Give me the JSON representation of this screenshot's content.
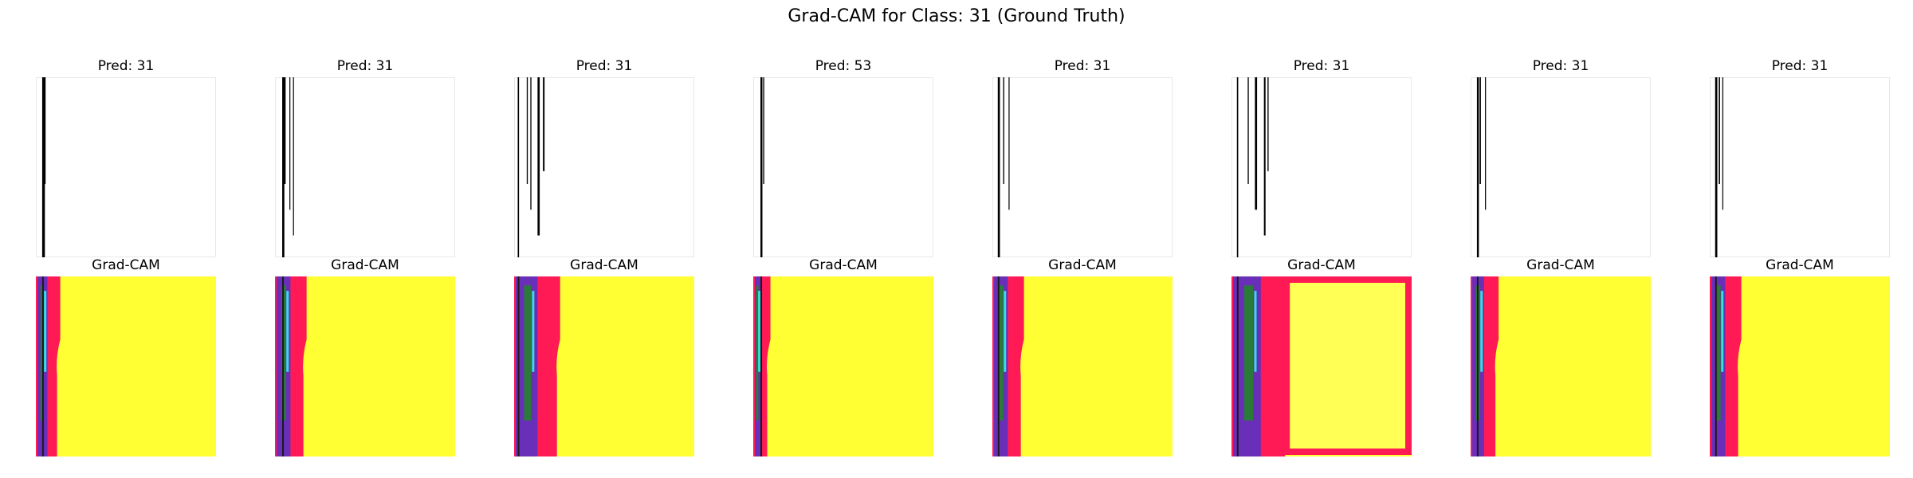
{
  "figure": {
    "title": "Grad-CAM for Class: 31 (Ground Truth)"
  },
  "chart_data": {
    "type": "image-grid",
    "rows": 2,
    "cols": 8,
    "panels": [
      {
        "pred_title": "Pred: 31",
        "cam_title": "Grad-CAM",
        "strokes": [
          [
            0.035,
            0.025
          ],
          [
            0.045,
            0.015
          ]
        ],
        "band": 0.1,
        "orange_frame": false
      },
      {
        "pred_title": "Pred: 31",
        "cam_title": "Grad-CAM",
        "strokes": [
          [
            0.04,
            0.02
          ],
          [
            0.05,
            0.015
          ],
          [
            0.08,
            0.008
          ],
          [
            0.1,
            0.006
          ]
        ],
        "band": 0.14,
        "orange_frame": false
      },
      {
        "pred_title": "Pred: 31",
        "cam_title": "Grad-CAM",
        "strokes": [
          [
            0.02,
            0.012
          ],
          [
            0.07,
            0.01
          ],
          [
            0.09,
            0.01
          ],
          [
            0.13,
            0.02
          ],
          [
            0.16,
            0.015
          ]
        ],
        "band": 0.22,
        "orange_frame": false
      },
      {
        "pred_title": "Pred: 53",
        "cam_title": "Grad-CAM",
        "strokes": [
          [
            0.04,
            0.018
          ],
          [
            0.055,
            0.01
          ]
        ],
        "band": 0.06,
        "orange_frame": false
      },
      {
        "pred_title": "Pred: 31",
        "cam_title": "Grad-CAM",
        "strokes": [
          [
            0.03,
            0.02
          ],
          [
            0.06,
            0.01
          ],
          [
            0.09,
            0.008
          ]
        ],
        "band": 0.14,
        "orange_frame": false
      },
      {
        "pred_title": "Pred: 31",
        "cam_title": "Grad-CAM",
        "strokes": [
          [
            0.03,
            0.012
          ],
          [
            0.09,
            0.01
          ],
          [
            0.13,
            0.02
          ],
          [
            0.18,
            0.015
          ],
          [
            0.2,
            0.01
          ]
        ],
        "band": 0.28,
        "orange_frame": true
      },
      {
        "pred_title": "Pred: 31",
        "cam_title": "Grad-CAM",
        "strokes": [
          [
            0.035,
            0.018
          ],
          [
            0.05,
            0.012
          ],
          [
            0.08,
            0.008
          ]
        ],
        "band": 0.12,
        "orange_frame": false
      },
      {
        "pred_title": "Pred: 31",
        "cam_title": "Grad-CAM",
        "strokes": [
          [
            0.03,
            0.02
          ],
          [
            0.05,
            0.012
          ],
          [
            0.07,
            0.008
          ]
        ],
        "band": 0.14,
        "orange_frame": false
      }
    ],
    "colors": {
      "heat_yellow": "#ffff33",
      "heat_pink": "#ff1a55",
      "heat_purple": "#6a2fb8",
      "heat_green": "#2a7a3a",
      "heat_cyan": "#33e0e0",
      "stroke": "#000000",
      "frame": "#e8e8e8"
    }
  }
}
